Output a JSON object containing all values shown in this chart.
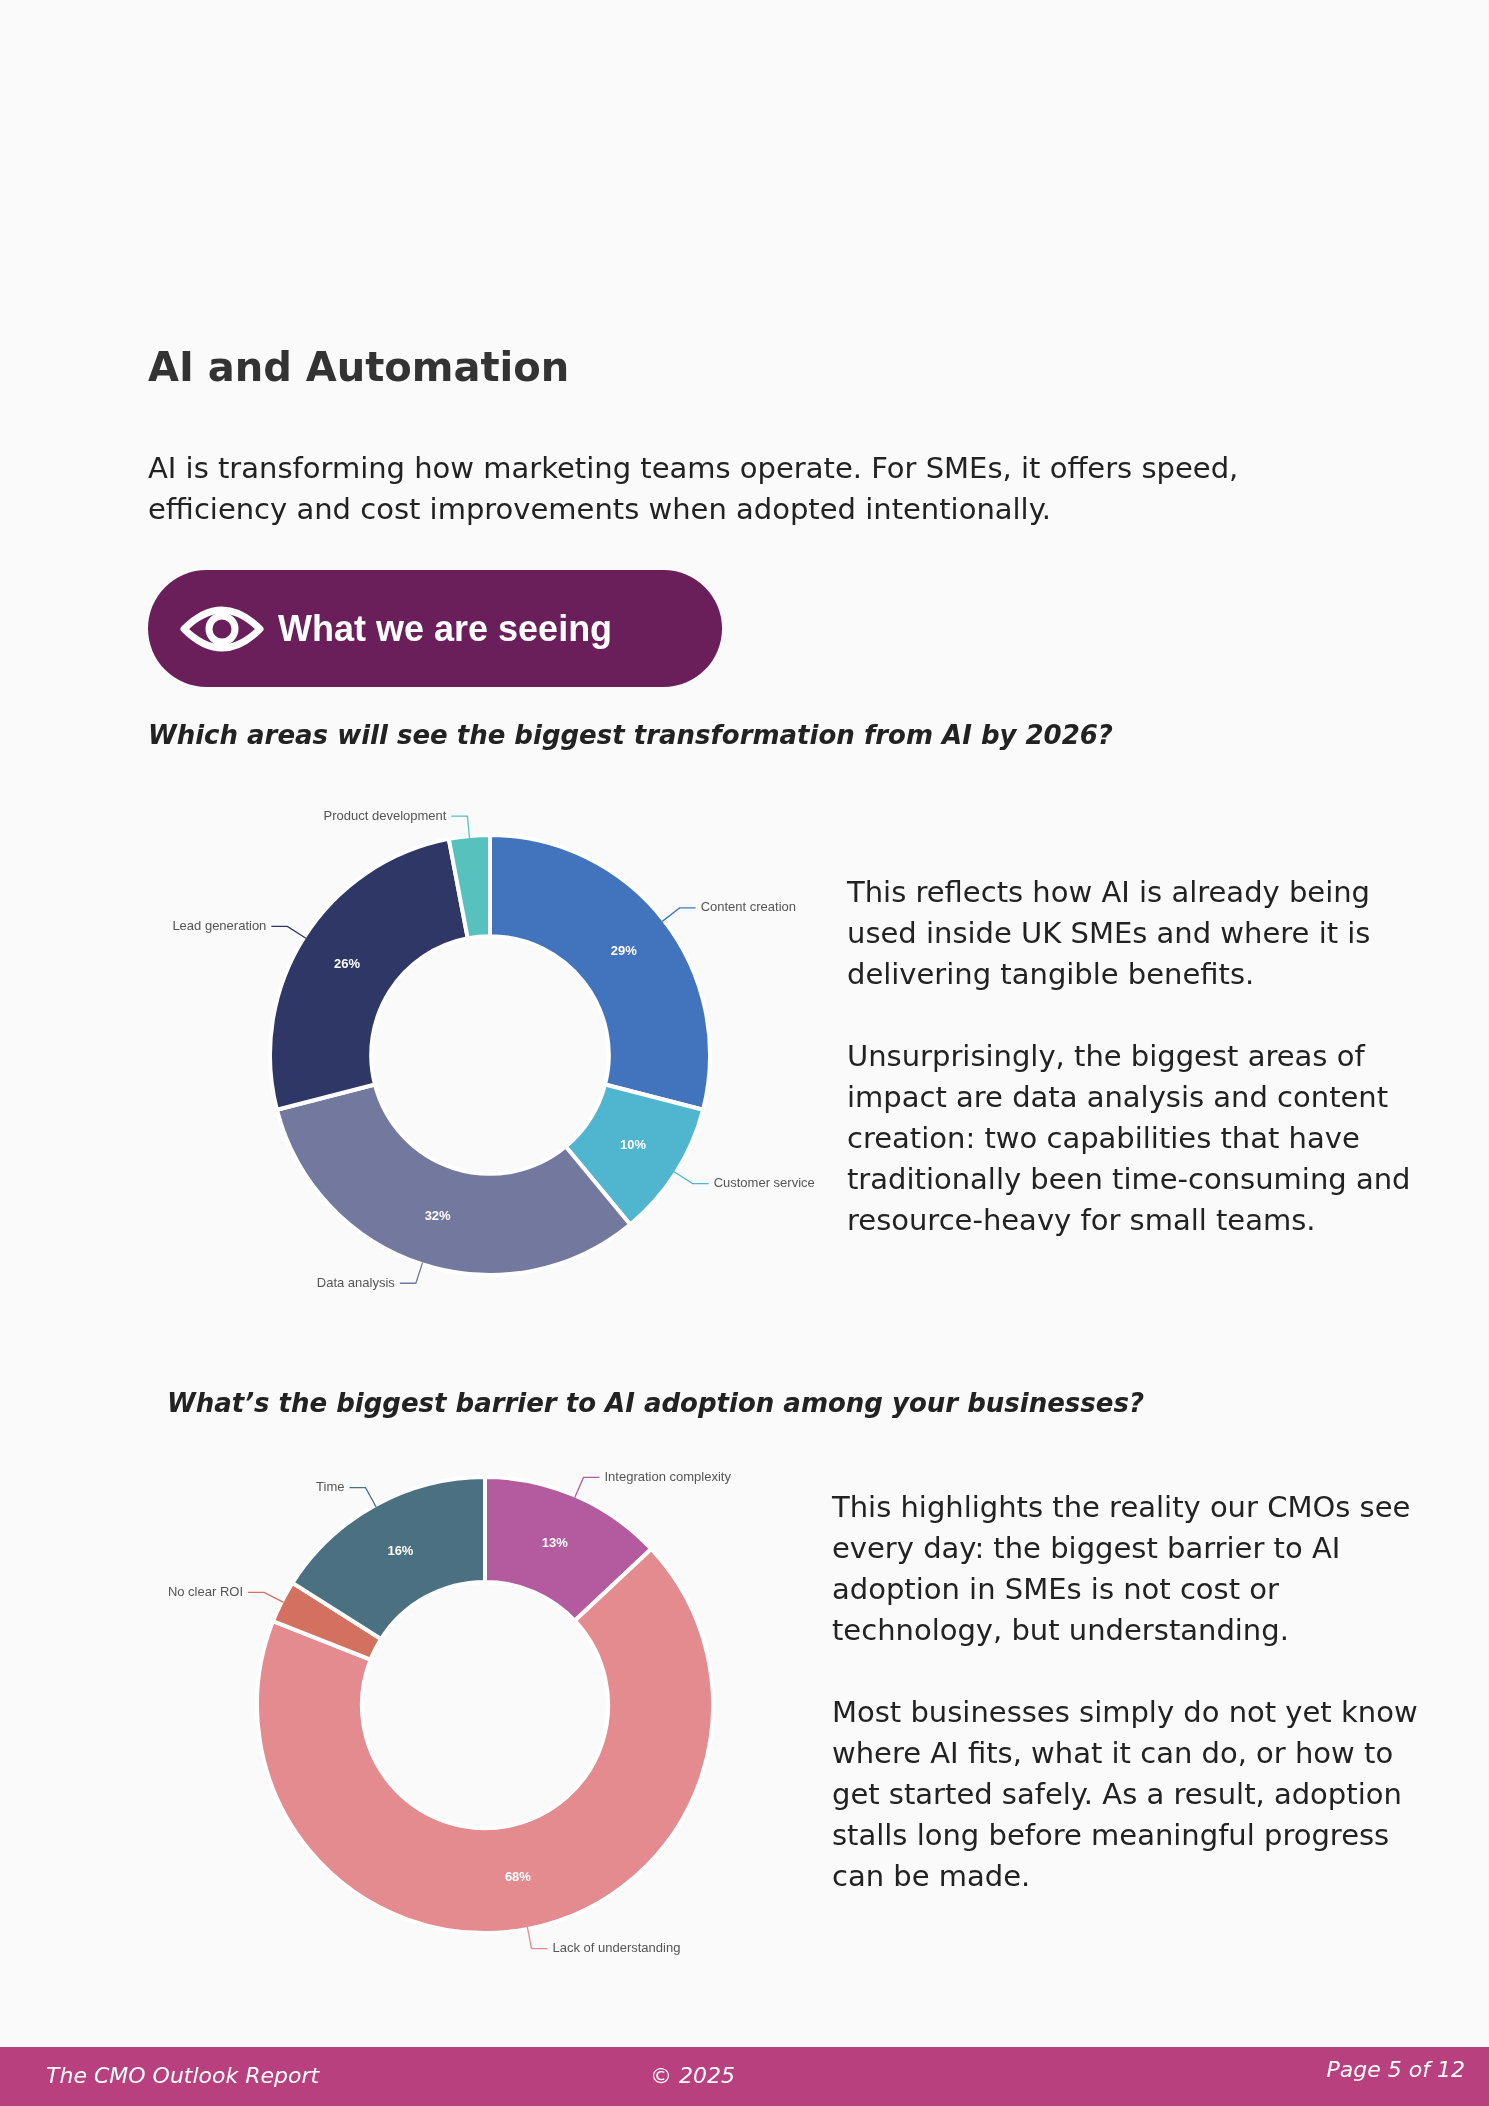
{
  "chart_data": [
    {
      "type": "donut",
      "title": "Which areas will see the biggest transformation from AI by 2026?",
      "categories": [
        "Content creation",
        "Customer service",
        "Data analysis",
        "Lead generation",
        "Product development"
      ],
      "values": [
        29,
        10,
        32,
        26,
        3
      ],
      "value_labels": [
        "29%",
        "10%",
        "32%",
        "26%",
        null
      ],
      "colors": [
        "#4174bd",
        "#50b5cf",
        "#73789e",
        "#2f3766",
        "#57c2bd"
      ],
      "legend": false,
      "annotations": [
        "AI and Automation",
        "AI is transforming how marketing teams operate. For SMEs, it offers speed, efficiency and cost improvements when adopted intentionally.",
        "What we are seeing",
        "This reflects how AI is already being used inside UK SMEs and where it is delivering tangible benefits.",
        "Unsurprisingly, the biggest areas of impact are data analysis and content creation: two capabilities that have traditionally been time-consuming and resource-heavy for small teams."
      ]
    },
    {
      "type": "donut",
      "title": "What’s the biggest barrier to AI adoption among your businesses?",
      "categories": [
        "Integration complexity",
        "Lack of understanding",
        "No clear ROI",
        "Time"
      ],
      "values": [
        13,
        68,
        3,
        16
      ],
      "value_labels": [
        "13%",
        "68%",
        null,
        "16%"
      ],
      "colors": [
        "#b45a9f",
        "#e38b8e",
        "#d37060",
        "#4b7082"
      ],
      "legend": false,
      "annotations": [
        "This highlights the reality our CMOs see every day: the biggest barrier to AI adoption in SMEs is not cost or technology, but understanding.",
        "Most businesses simply do not yet know where AI fits, what it can do, or how to get started safely. As a result, adoption stalls long before meaningful progress can be made.",
        "The CMO Outlook Report",
        "© 2025",
        "Page 5 of 12"
      ]
    }
  ]
}
